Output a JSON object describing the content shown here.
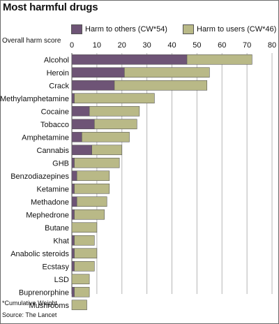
{
  "title": "Most harmful drugs",
  "footnote": "*Cumulative Weight",
  "source": "Source: The Lancet",
  "colors": {
    "others": "#6e5476",
    "users": "#b9b987",
    "grid": "#b5b5b5",
    "axis": "#444444"
  },
  "chart_data": {
    "type": "bar",
    "orientation": "horizontal",
    "stacked": true,
    "xlabel": "Overall harm score",
    "xlim": [
      0,
      80
    ],
    "xticks": [
      0,
      10,
      20,
      30,
      40,
      50,
      60,
      70,
      80
    ],
    "grid": true,
    "legend_position": "top",
    "categories": [
      "Alcohol",
      "Heroin",
      "Crack",
      "Methylamphetamine",
      "Cocaine",
      "Tobacco",
      "Amphetamine",
      "Cannabis",
      "GHB",
      "Benzodiazepines",
      "Ketamine",
      "Methadone",
      "Mephedrone",
      "Butane",
      "Khat",
      "Anabolic steroids",
      "Ecstasy",
      "LSD",
      "Buprenorphine",
      "Mushrooms"
    ],
    "series": [
      {
        "name": "Harm to others (CW*54)",
        "values": [
          46,
          21,
          17,
          1,
          7,
          9,
          4,
          8,
          1,
          2,
          1,
          2,
          1,
          0,
          1,
          1,
          1,
          0,
          1,
          0
        ]
      },
      {
        "name": "Harm to users (CW*46)",
        "values": [
          26,
          34,
          37,
          32,
          20,
          17,
          19,
          12,
          18,
          13,
          14,
          12,
          12,
          10,
          8,
          9,
          8,
          7,
          6,
          6
        ]
      }
    ]
  }
}
